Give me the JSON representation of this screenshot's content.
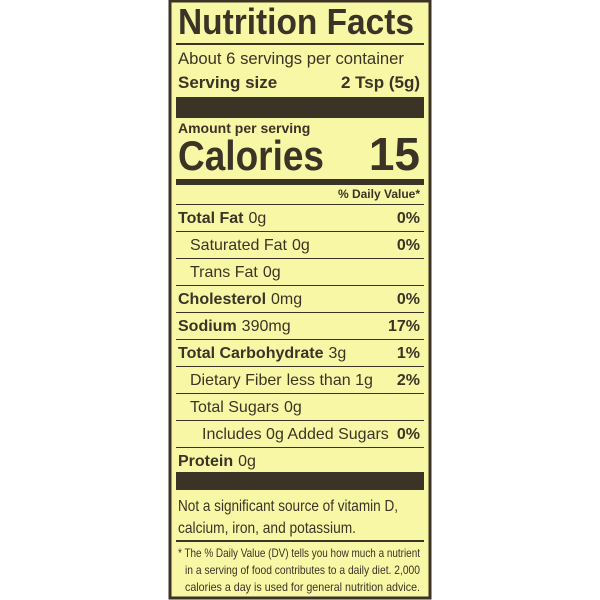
{
  "header": {
    "title": "Nutrition Facts",
    "servings": "About 6 servings per container",
    "serving_size_label": "Serving size",
    "serving_size_value": "2 Tsp (5g)"
  },
  "calories": {
    "amount_per_serving": "Amount per serving",
    "label": "Calories",
    "value": 15
  },
  "dv_header": "% Daily Value*",
  "nutrients": [
    {
      "name": "Total Fat",
      "amount": "0g",
      "dv": "0%"
    },
    {
      "name": "Saturated Fat",
      "amount": "0g",
      "dv": "0%"
    },
    {
      "name": "Trans Fat",
      "amount": "0g"
    },
    {
      "name": "Cholesterol",
      "amount": "0mg",
      "dv": "0%"
    },
    {
      "name": "Sodium",
      "amount": "390mg",
      "dv": "17%"
    },
    {
      "name": "Total Carbohydrate",
      "amount": "3g",
      "dv": "1%"
    },
    {
      "name": "Dietary Fiber",
      "amount": "less than 1g",
      "dv": "2%"
    },
    {
      "name": "Total Sugars",
      "amount": "0g"
    },
    {
      "name": "Includes 0g Added Sugars",
      "dv": "0%"
    },
    {
      "name": "Protein",
      "amount": "0g"
    }
  ],
  "vitamins_note": [
    "Not a significant source of vitamin D,",
    "calcium, iron, and potassium."
  ],
  "footnote": [
    "* The % Daily Value (DV) tells you how much a nutrient",
    "in a serving of food contributes to a daily diet. 2,000",
    "calories a day is used for general nutrition advice."
  ]
}
